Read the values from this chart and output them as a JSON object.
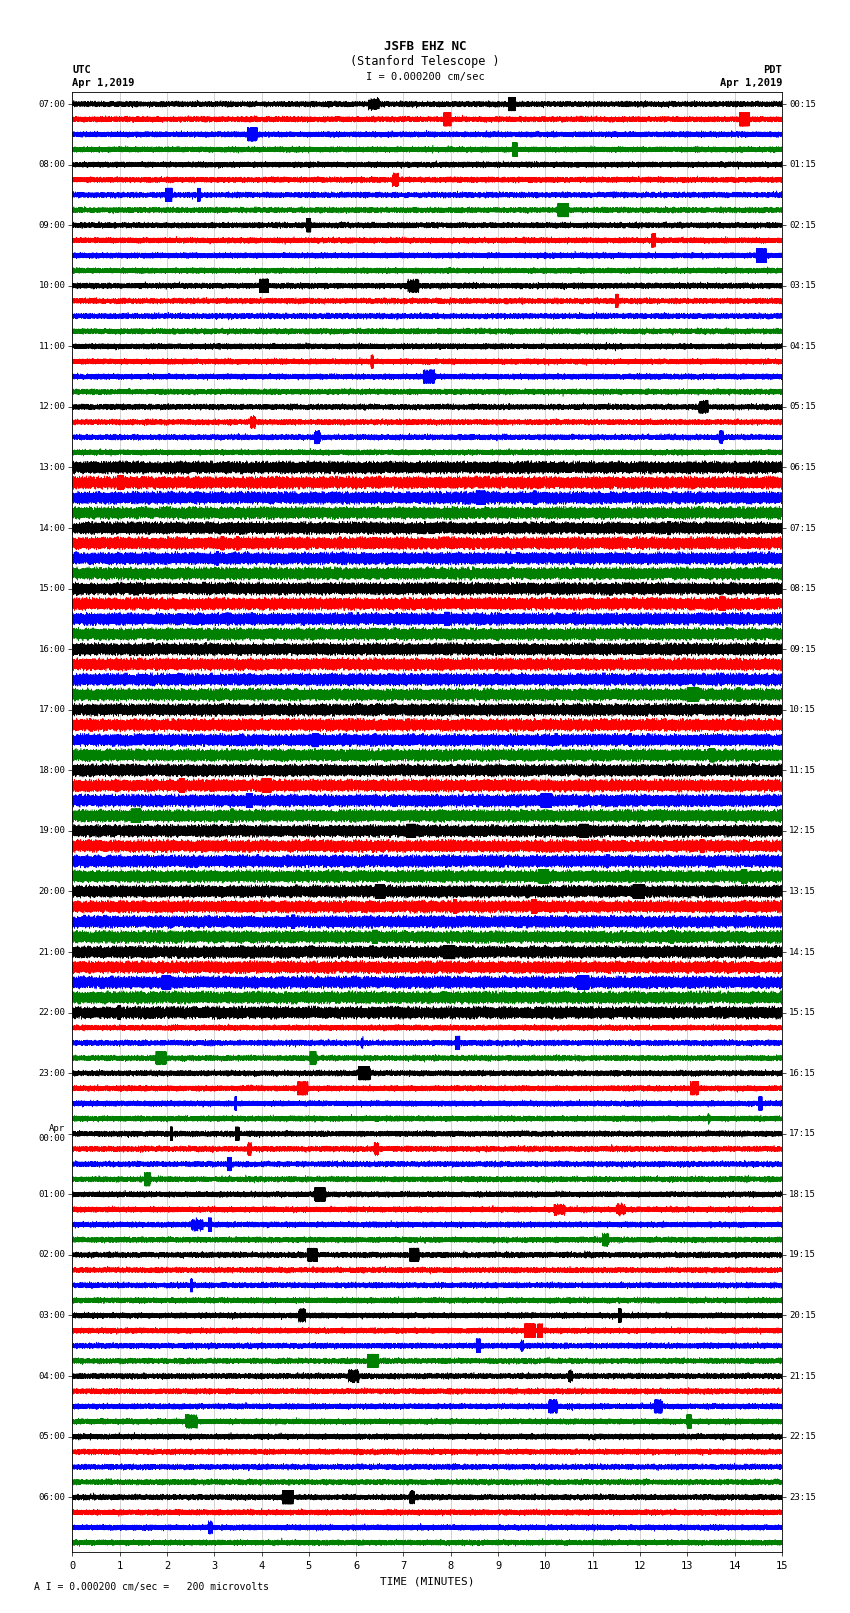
{
  "title_line1": "JSFB EHZ NC",
  "title_line2": "(Stanford Telescope )",
  "scale_text": "I = 0.000200 cm/sec",
  "footer_text": "A I = 0.000200 cm/sec =   200 microvolts",
  "utc_label": "UTC",
  "utc_date": "Apr 1,2019",
  "pdt_label": "PDT",
  "pdt_date": "Apr 1,2019",
  "xlabel": "TIME (MINUTES)",
  "xlim": [
    0,
    15
  ],
  "xticks": [
    0,
    1,
    2,
    3,
    4,
    5,
    6,
    7,
    8,
    9,
    10,
    11,
    12,
    13,
    14,
    15
  ],
  "colors": [
    "black",
    "red",
    "blue",
    "green"
  ],
  "background": "white",
  "n_traces": 96,
  "trace_duration_minutes": 15,
  "sample_rate": 100,
  "seed": 42,
  "utc_times": [
    "07:00",
    "",
    "",
    "",
    "08:00",
    "",
    "",
    "",
    "09:00",
    "",
    "",
    "",
    "10:00",
    "",
    "",
    "",
    "11:00",
    "",
    "",
    "",
    "12:00",
    "",
    "",
    "",
    "13:00",
    "",
    "",
    "",
    "14:00",
    "",
    "",
    "",
    "15:00",
    "",
    "",
    "",
    "16:00",
    "",
    "",
    "",
    "17:00",
    "",
    "",
    "",
    "18:00",
    "",
    "",
    "",
    "19:00",
    "",
    "",
    "",
    "20:00",
    "",
    "",
    "",
    "21:00",
    "",
    "",
    "",
    "22:00",
    "",
    "",
    "",
    "23:00",
    "",
    "",
    "",
    "Apr\n00:00",
    "",
    "",
    "",
    "01:00",
    "",
    "",
    "",
    "02:00",
    "",
    "",
    "",
    "03:00",
    "",
    "",
    "",
    "04:00",
    "",
    "",
    "",
    "05:00",
    "",
    "",
    "",
    "06:00",
    "",
    "",
    ""
  ],
  "pdt_times": [
    "00:15",
    "",
    "",
    "",
    "01:15",
    "",
    "",
    "",
    "02:15",
    "",
    "",
    "",
    "03:15",
    "",
    "",
    "",
    "04:15",
    "",
    "",
    "",
    "05:15",
    "",
    "",
    "",
    "06:15",
    "",
    "",
    "",
    "07:15",
    "",
    "",
    "",
    "08:15",
    "",
    "",
    "",
    "09:15",
    "",
    "",
    "",
    "10:15",
    "",
    "",
    "",
    "11:15",
    "",
    "",
    "",
    "12:15",
    "",
    "",
    "",
    "13:15",
    "",
    "",
    "",
    "14:15",
    "",
    "",
    "",
    "15:15",
    "",
    "",
    "",
    "16:15",
    "",
    "",
    "",
    "17:15",
    "",
    "",
    "",
    "18:15",
    "",
    "",
    "",
    "19:15",
    "",
    "",
    "",
    "20:15",
    "",
    "",
    "",
    "21:15",
    "",
    "",
    "",
    "22:15",
    "",
    "",
    "",
    "23:15",
    "",
    "",
    ""
  ]
}
